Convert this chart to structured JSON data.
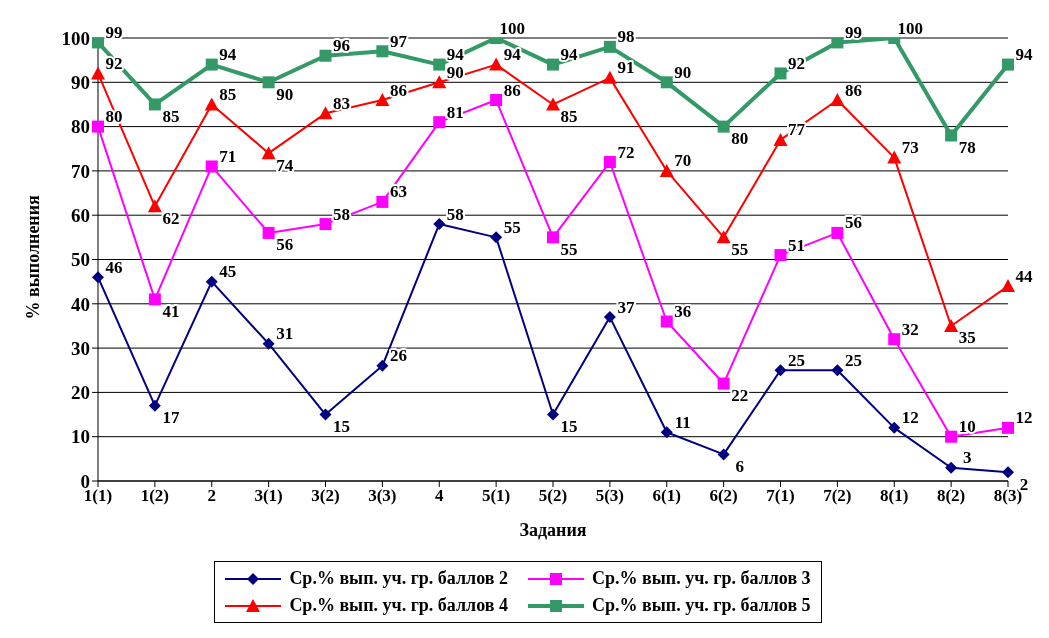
{
  "chart_data": {
    "type": "line",
    "xlabel": "Задания",
    "ylabel": "% выполнения",
    "categories": [
      "1(1)",
      "1(2)",
      "2",
      "3(1)",
      "3(2)",
      "3(3)",
      "4",
      "5(1)",
      "5(2)",
      "5(3)",
      "6(1)",
      "6(2)",
      "7(1)",
      "7(2)",
      "8(1)",
      "8(2)",
      "8(3)"
    ],
    "series": [
      {
        "name": "Ср.% вып. уч. гр. баллов 2",
        "color": "#000080",
        "marker": "diamond",
        "values": [
          46,
          17,
          45,
          31,
          15,
          26,
          58,
          55,
          15,
          37,
          11,
          6,
          25,
          25,
          12,
          3,
          2
        ]
      },
      {
        "name": "Ср.% вып. уч. гр. баллов 3",
        "color": "#ff00ff",
        "marker": "square",
        "values": [
          80,
          41,
          71,
          56,
          58,
          63,
          81,
          86,
          55,
          72,
          36,
          22,
          51,
          56,
          32,
          10,
          12
        ]
      },
      {
        "name": "Ср.% вып. уч. гр. баллов 4",
        "color": "#ff0000",
        "marker": "triangle",
        "values": [
          92,
          62,
          85,
          74,
          83,
          86,
          90,
          94,
          85,
          91,
          70,
          55,
          77,
          86,
          73,
          35,
          44
        ]
      },
      {
        "name": "Ср.% вып. уч. гр. баллов 5",
        "color": "#339966",
        "marker": "square",
        "values": [
          99,
          85,
          94,
          90,
          96,
          97,
          94,
          100,
          94,
          98,
          90,
          80,
          92,
          99,
          100,
          78,
          94
        ]
      }
    ],
    "ylim": [
      0,
      100
    ],
    "yticks": [
      0,
      10,
      20,
      30,
      40,
      50,
      60,
      70,
      80,
      90,
      100
    ],
    "grid": "y",
    "legend": "bottom",
    "data_labels": true,
    "line_style": "solid"
  }
}
